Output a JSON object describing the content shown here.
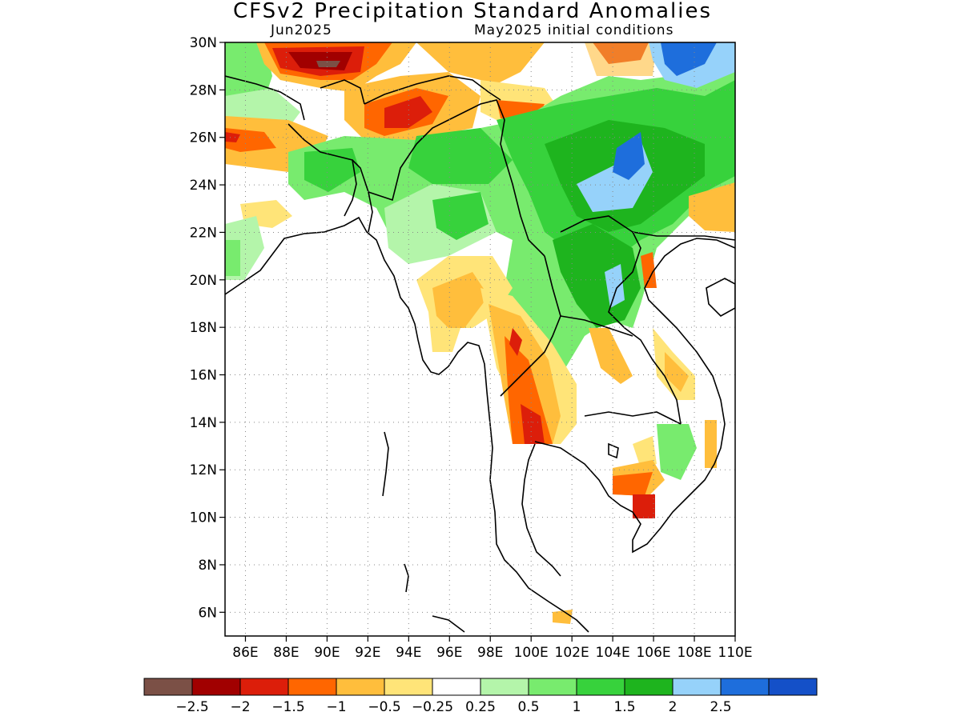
{
  "title": "CFSv2 Precipitation Standard Anomalies",
  "forecast_month": "Jun2025",
  "initial_conditions": "May2025 initial conditions",
  "map": {
    "lat_ticks": [
      "30N",
      "28N",
      "26N",
      "24N",
      "22N",
      "20N",
      "18N",
      "16N",
      "14N",
      "12N",
      "10N",
      "8N",
      "6N"
    ],
    "lon_ticks": [
      "86E",
      "88E",
      "90E",
      "92E",
      "94E",
      "96E",
      "98E",
      "100E",
      "102E",
      "104E",
      "106E",
      "108E",
      "110E"
    ],
    "lat_range": [
      5,
      30
    ],
    "lon_range": [
      85,
      110
    ],
    "grid": "dotted"
  },
  "colorbar": {
    "colors": [
      "#7b5046",
      "#a10000",
      "#dc1e0a",
      "#ff6600",
      "#ffbe3c",
      "#ffe478",
      "#ffffff",
      "#b4f5aa",
      "#78eb6e",
      "#37d23c",
      "#1eb41e",
      "#96d2fa",
      "#1e6edc",
      "#1450c8"
    ],
    "labels": [
      "−2.5",
      "−2",
      "−1.5",
      "−1",
      "−0.5",
      "−0.25",
      "0.25",
      "0.5",
      "1",
      "1.5",
      "2",
      "2.5"
    ]
  }
}
